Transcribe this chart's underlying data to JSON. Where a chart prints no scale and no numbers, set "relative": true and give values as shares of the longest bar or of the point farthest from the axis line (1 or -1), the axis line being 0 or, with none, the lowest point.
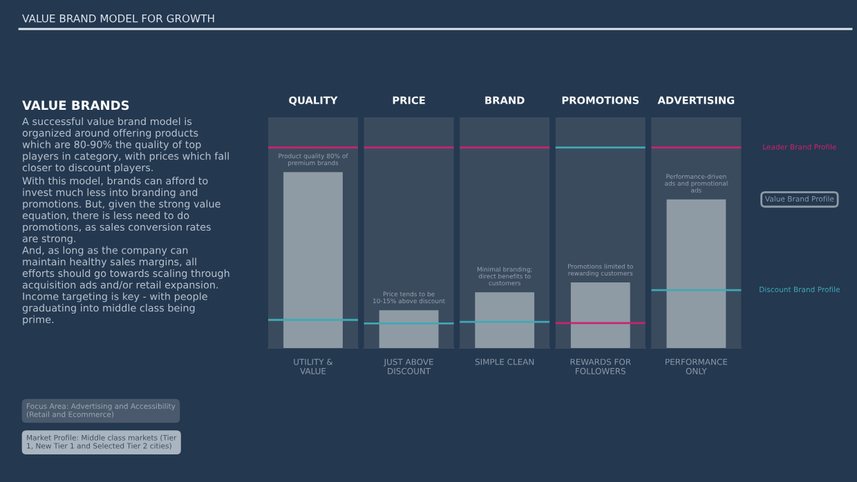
{
  "chart_data": [
    {
      "type": "other",
      "title": "VALUE BRAND MODEL FOR GROWTH",
      "subtitle": "VALUE BRANDS",
      "annotations": [
        "A successful value brand model is organized around offering products which are 80-90% the quality of top players in category, with prices which fall closer to discount players.",
        "With this model, brands can afford to invest much less into branding and promotions. But, given the strong value equation, there is less need to do promotions, as sales conversion rates are strong.",
        "And, as long as the company can maintain healthy sales margins, all efforts should go towards scaling through acquisition ads and/or retail expansion. Income targeting is key - with people graduating into middle class being prime."
      ]
    },
    {
      "type": "other",
      "annotations": [
        "Focus Area: Advertising and Accessibility (Retail and Ecommerce)",
        "Market Profile: Middle class markets (Tier 1, New Tier 1 and Selected Tier 2 cities)"
      ]
    },
    {
      "type": "bar",
      "relative": true,
      "title": "QUALITY",
      "xlabel": "UTILITY & VALUE",
      "categories": [
        null
      ],
      "series": [
        {
          "color": "#8e9ba5",
          "values": [
            1
          ]
        }
      ],
      "ref_lines": [
        {
          "axis": "y",
          "value": 1.14,
          "color": "#c9236f"
        },
        {
          "axis": "y",
          "value": 0.16,
          "color": "#3fa9b5"
        }
      ],
      "annotations": [
        {
          "text": "Product quality 80% of premium brands",
          "y": 1
        }
      ]
    },
    {
      "type": "bar",
      "relative": true,
      "title": "PRICE",
      "xlabel": "JUST ABOVE DISCOUNT",
      "categories": [
        null
      ],
      "series": [
        {
          "color": "#8e9ba5",
          "values": [
            1
          ]
        }
      ],
      "ref_lines": [
        {
          "axis": "y",
          "value": 5.3,
          "color": "#c9236f"
        },
        {
          "axis": "y",
          "value": 0.65,
          "color": "#3fa9b5"
        }
      ],
      "annotations": [
        {
          "text": "Price tends to be 10-15% above discount",
          "y": 1
        }
      ]
    },
    {
      "type": "bar",
      "relative": true,
      "title": "BRAND",
      "xlabel": "SIMPLE CLEAN",
      "categories": [
        null
      ],
      "series": [
        {
          "color": "#8e9ba5",
          "values": [
            1
          ]
        }
      ],
      "ref_lines": [
        {
          "axis": "y",
          "value": 3.6,
          "color": "#c9236f"
        },
        {
          "axis": "y",
          "value": 0.47,
          "color": "#3fa9b5"
        }
      ],
      "annotations": [
        {
          "text": "Minimal branding; direct benefits to customers",
          "y": 1
        }
      ]
    },
    {
      "type": "bar",
      "relative": true,
      "title": "PROMOTIONS",
      "xlabel": "REWARDS FOR FOLLOWERS",
      "categories": [
        null
      ],
      "series": [
        {
          "color": "#8e9ba5",
          "values": [
            1
          ]
        }
      ],
      "ref_lines": [
        {
          "axis": "y",
          "value": 0.38,
          "color": "#c9236f"
        },
        {
          "axis": "y",
          "value": 3.06,
          "color": "#3fa9b5"
        }
      ],
      "annotations": [
        {
          "text": "Promotions limited to rewarding customers",
          "y": 1
        }
      ]
    },
    {
      "type": "bar",
      "relative": true,
      "title": "ADVERTISING",
      "xlabel": "PERFORMANCE ONLY",
      "categories": [
        null
      ],
      "series": [
        {
          "name": "Value Brand Profile",
          "color": "#8e9ba5",
          "values": [
            1
          ]
        }
      ],
      "ref_lines": [
        {
          "axis": "y",
          "value": 1.35,
          "color": "#c9236f",
          "label": "Leader Brand Profile"
        },
        {
          "axis": "y",
          "value": 0.39,
          "color": "#3fa9b5",
          "label": "Discount Brand Profile"
        }
      ],
      "annotations": [
        {
          "text": "Performance-driven ads and promotional ads",
          "y": 1
        }
      ]
    }
  ]
}
